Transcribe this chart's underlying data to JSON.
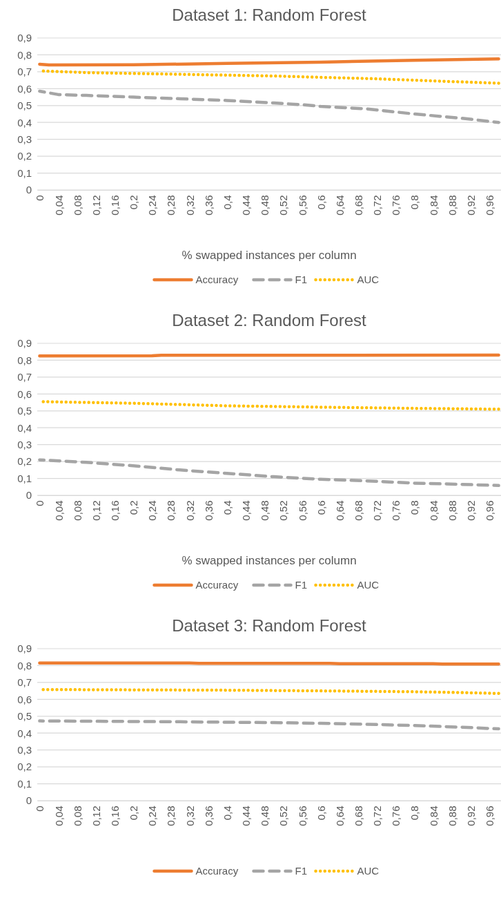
{
  "chart_data": [
    {
      "type": "line",
      "title": "Dataset 1: Random Forest",
      "xlabel": "% swapped instances per column",
      "xlim": [
        -0.005,
        0.985
      ],
      "xticks": [
        {
          "value": 0,
          "label": "0"
        },
        {
          "value": 0.04,
          "label": "0,04"
        },
        {
          "value": 0.08,
          "label": "0,08"
        },
        {
          "value": 0.12,
          "label": "0,12"
        },
        {
          "value": 0.16,
          "label": "0,16"
        },
        {
          "value": 0.2,
          "label": "0,2"
        },
        {
          "value": 0.24,
          "label": "0,24"
        },
        {
          "value": 0.28,
          "label": "0,28"
        },
        {
          "value": 0.32,
          "label": "0,32"
        },
        {
          "value": 0.36,
          "label": "0,36"
        },
        {
          "value": 0.4,
          "label": "0,4"
        },
        {
          "value": 0.44,
          "label": "0,44"
        },
        {
          "value": 0.48,
          "label": "0,48"
        },
        {
          "value": 0.52,
          "label": "0,52"
        },
        {
          "value": 0.56,
          "label": "0,56"
        },
        {
          "value": 0.6,
          "label": "0,6"
        },
        {
          "value": 0.64,
          "label": "0,64"
        },
        {
          "value": 0.68,
          "label": "0,68"
        },
        {
          "value": 0.72,
          "label": "0,72"
        },
        {
          "value": 0.76,
          "label": "0,76"
        },
        {
          "value": 0.8,
          "label": "0,8"
        },
        {
          "value": 0.84,
          "label": "0,84"
        },
        {
          "value": 0.88,
          "label": "0,88"
        },
        {
          "value": 0.92,
          "label": "0,92"
        },
        {
          "value": 0.96,
          "label": "0,96"
        }
      ],
      "ylim": [
        0,
        0.9
      ],
      "yticks": [
        {
          "value": 0,
          "label": "0"
        },
        {
          "value": 0.1,
          "label": "0,1"
        },
        {
          "value": 0.2,
          "label": "0,2"
        },
        {
          "value": 0.3,
          "label": "0,3"
        },
        {
          "value": 0.4,
          "label": "0,4"
        },
        {
          "value": 0.5,
          "label": "0,5"
        },
        {
          "value": 0.6,
          "label": "0,6"
        },
        {
          "value": 0.7,
          "label": "0,7"
        },
        {
          "value": 0.8,
          "label": "0,8"
        },
        {
          "value": 0.9,
          "label": "0,9"
        }
      ],
      "grid": "y",
      "legend": "bottom",
      "series": [
        {
          "name": "Accuracy",
          "color": "#ed7d31",
          "line_style": "solid",
          "x": [
            0,
            0.02,
            0.2,
            0.4,
            0.6,
            0.8,
            0.98
          ],
          "values": [
            0.745,
            0.74,
            0.741,
            0.75,
            0.757,
            0.768,
            0.776
          ]
        },
        {
          "name": "F1",
          "color": "#a5a5a5",
          "line_style": "dashed",
          "x": [
            0,
            0.04,
            0.1,
            0.2,
            0.3,
            0.4,
            0.5,
            0.56,
            0.6,
            0.7,
            0.8,
            0.9,
            0.98
          ],
          "values": [
            0.585,
            0.565,
            0.56,
            0.55,
            0.54,
            0.53,
            0.515,
            0.505,
            0.495,
            0.48,
            0.45,
            0.425,
            0.4
          ]
        },
        {
          "name": "AUC",
          "color": "#ffc000",
          "line_style": "dotted",
          "x": [
            0,
            0.1,
            0.2,
            0.3,
            0.4,
            0.5,
            0.6,
            0.7,
            0.8,
            0.9,
            0.98
          ],
          "values": [
            0.705,
            0.695,
            0.69,
            0.685,
            0.68,
            0.675,
            0.667,
            0.66,
            0.65,
            0.64,
            0.632
          ]
        }
      ]
    },
    {
      "type": "line",
      "title": "Dataset 2: Random Forest",
      "xlabel": "% swapped instances per column",
      "xlim": [
        -0.005,
        0.985
      ],
      "xticks": [
        0,
        {
          "value": 0.04,
          "label": "0,04"
        },
        {
          "value": 0.08,
          "label": "0,08"
        },
        {
          "value": 0.12,
          "label": "0,12"
        },
        {
          "value": 0.16,
          "label": "0,16"
        },
        {
          "value": 0.2,
          "label": "0,2"
        },
        {
          "value": 0.24,
          "label": "0,24"
        },
        {
          "value": 0.28,
          "label": "0,28"
        },
        {
          "value": 0.32,
          "label": "0,32"
        },
        {
          "value": 0.36,
          "label": "0,36"
        },
        {
          "value": 0.4,
          "label": "0,4"
        },
        {
          "value": 0.44,
          "label": "0,44"
        },
        {
          "value": 0.48,
          "label": "0,48"
        },
        {
          "value": 0.52,
          "label": "0,52"
        },
        {
          "value": 0.56,
          "label": "0,56"
        },
        {
          "value": 0.6,
          "label": "0,6"
        },
        {
          "value": 0.64,
          "label": "0,64"
        },
        {
          "value": 0.68,
          "label": "0,68"
        },
        {
          "value": 0.72,
          "label": "0,72"
        },
        {
          "value": 0.76,
          "label": "0,76"
        },
        {
          "value": 0.8,
          "label": "0,8"
        },
        {
          "value": 0.84,
          "label": "0,84"
        },
        {
          "value": 0.88,
          "label": "0,88"
        },
        {
          "value": 0.92,
          "label": "0,92"
        },
        {
          "value": 0.96,
          "label": "0,96"
        }
      ],
      "ylim": [
        0,
        0.9
      ],
      "yticks": [
        0,
        {
          "value": 0.1,
          "label": "0,1"
        },
        {
          "value": 0.2,
          "label": "0,2"
        },
        {
          "value": 0.3,
          "label": "0,3"
        },
        {
          "value": 0.4,
          "label": "0,4"
        },
        {
          "value": 0.5,
          "label": "0,5"
        },
        {
          "value": 0.6,
          "label": "0,6"
        },
        {
          "value": 0.7,
          "label": "0,7"
        },
        {
          "value": 0.8,
          "label": "0,8"
        },
        {
          "value": 0.9,
          "label": "0,9"
        }
      ],
      "grid": "y",
      "legend": "bottom",
      "series": [
        {
          "name": "Accuracy",
          "color": "#ed7d31",
          "line_style": "solid",
          "x": [
            0,
            0.24,
            0.26,
            0.98
          ],
          "values": [
            0.825,
            0.826,
            0.829,
            0.83
          ]
        },
        {
          "name": "F1",
          "color": "#a5a5a5",
          "line_style": "dashed",
          "x": [
            0,
            0.1,
            0.2,
            0.3,
            0.4,
            0.5,
            0.6,
            0.7,
            0.8,
            0.9,
            0.98
          ],
          "values": [
            0.21,
            0.195,
            0.175,
            0.15,
            0.13,
            0.11,
            0.095,
            0.085,
            0.072,
            0.065,
            0.058
          ]
        },
        {
          "name": "AUC",
          "color": "#ffc000",
          "line_style": "dotted",
          "x": [
            0,
            0.2,
            0.4,
            0.6,
            0.8,
            0.98
          ],
          "values": [
            0.555,
            0.545,
            0.53,
            0.522,
            0.515,
            0.51
          ]
        }
      ]
    },
    {
      "type": "line",
      "title": "Dataset 3: Random Forest",
      "xlim": [
        -0.005,
        0.985
      ],
      "xticks": [
        0,
        {
          "value": 0.04,
          "label": "0,04"
        },
        {
          "value": 0.08,
          "label": "0,08"
        },
        {
          "value": 0.12,
          "label": "0,12"
        },
        {
          "value": 0.16,
          "label": "0,16"
        },
        {
          "value": 0.2,
          "label": "0,2"
        },
        {
          "value": 0.24,
          "label": "0,24"
        },
        {
          "value": 0.28,
          "label": "0,28"
        },
        {
          "value": 0.32,
          "label": "0,32"
        },
        {
          "value": 0.36,
          "label": "0,36"
        },
        {
          "value": 0.4,
          "label": "0,4"
        },
        {
          "value": 0.44,
          "label": "0,44"
        },
        {
          "value": 0.48,
          "label": "0,48"
        },
        {
          "value": 0.52,
          "label": "0,52"
        },
        {
          "value": 0.56,
          "label": "0,56"
        },
        {
          "value": 0.6,
          "label": "0,6"
        },
        {
          "value": 0.64,
          "label": "0,64"
        },
        {
          "value": 0.68,
          "label": "0,68"
        },
        {
          "value": 0.72,
          "label": "0,72"
        },
        {
          "value": 0.76,
          "label": "0,76"
        },
        {
          "value": 0.8,
          "label": "0,8"
        },
        {
          "value": 0.84,
          "label": "0,84"
        },
        {
          "value": 0.88,
          "label": "0,88"
        },
        {
          "value": 0.92,
          "label": "0,92"
        },
        {
          "value": 0.96,
          "label": "0,96"
        }
      ],
      "ylim": [
        0,
        0.9
      ],
      "yticks": [
        0,
        {
          "value": 0.1,
          "label": "0,1"
        },
        {
          "value": 0.2,
          "label": "0,2"
        },
        {
          "value": 0.3,
          "label": "0,3"
        },
        {
          "value": 0.4,
          "label": "0,4"
        },
        {
          "value": 0.5,
          "label": "0,5"
        },
        {
          "value": 0.6,
          "label": "0,6"
        },
        {
          "value": 0.7,
          "label": "0,7"
        },
        {
          "value": 0.8,
          "label": "0,8"
        },
        {
          "value": 0.9,
          "label": "0,9"
        }
      ],
      "grid": "y",
      "legend": "bottom",
      "series": [
        {
          "name": "Accuracy",
          "color": "#ed7d31",
          "line_style": "solid",
          "x": [
            0,
            0.32,
            0.34,
            0.62,
            0.64,
            0.84,
            0.86,
            0.98
          ],
          "values": [
            0.815,
            0.815,
            0.813,
            0.813,
            0.811,
            0.811,
            0.809,
            0.809
          ]
        },
        {
          "name": "F1",
          "color": "#a5a5a5",
          "line_style": "dashed",
          "x": [
            0,
            0.3,
            0.5,
            0.6,
            0.7,
            0.8,
            0.9,
            0.98
          ],
          "values": [
            0.472,
            0.467,
            0.462,
            0.458,
            0.452,
            0.445,
            0.435,
            0.425
          ]
        },
        {
          "name": "AUC",
          "color": "#ffc000",
          "line_style": "dotted",
          "x": [
            0,
            0.4,
            0.6,
            0.8,
            0.9,
            0.98
          ],
          "values": [
            0.658,
            0.654,
            0.65,
            0.645,
            0.64,
            0.635
          ]
        }
      ]
    }
  ]
}
